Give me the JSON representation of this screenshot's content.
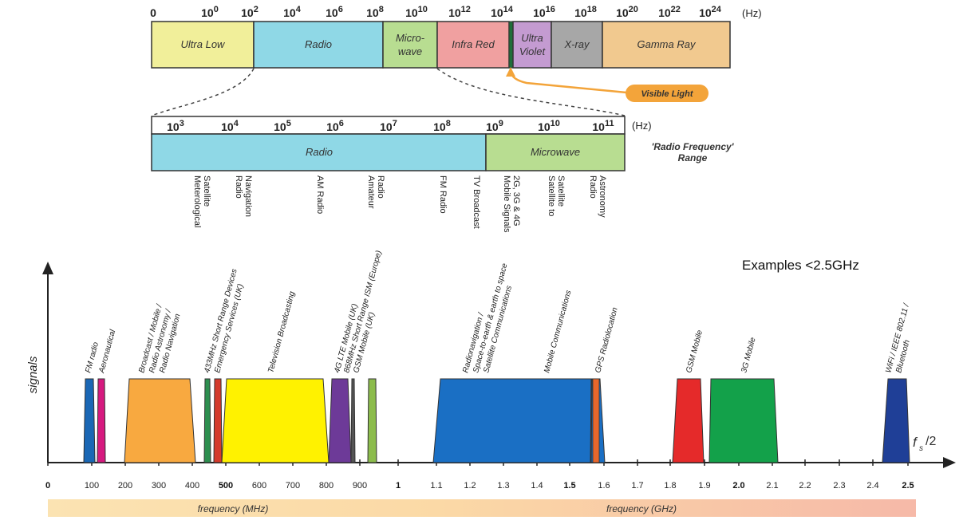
{
  "spectrum": {
    "unit": "(Hz)",
    "ticks": [
      {
        "base": "0",
        "exp": ""
      },
      {
        "base": "10",
        "exp": "0"
      },
      {
        "base": "10",
        "exp": "2"
      },
      {
        "base": "10",
        "exp": "4"
      },
      {
        "base": "10",
        "exp": "6"
      },
      {
        "base": "10",
        "exp": "8"
      },
      {
        "base": "10",
        "exp": "10"
      },
      {
        "base": "10",
        "exp": "12"
      },
      {
        "base": "10",
        "exp": "14"
      },
      {
        "base": "10",
        "exp": "16"
      },
      {
        "base": "10",
        "exp": "18"
      },
      {
        "base": "10",
        "exp": "20"
      },
      {
        "base": "10",
        "exp": "22"
      },
      {
        "base": "10",
        "exp": "24"
      }
    ],
    "bands": [
      {
        "name": "Ultra Low",
        "color": "#f1ef9a"
      },
      {
        "name": "Radio",
        "color": "#8fd8e6"
      },
      {
        "name": "Micro-",
        "name2": "wave",
        "color": "#b8dd91"
      },
      {
        "name": "Infra Red",
        "color": "#f0a0a0"
      },
      {
        "name": "Ultra",
        "name2": "Violet",
        "color": "#c49bd1"
      },
      {
        "name": "X-ray",
        "color": "#a7a7a7"
      },
      {
        "name": "Gamma Ray",
        "color": "#f1c98f"
      }
    ],
    "visible_light": "Visible Light"
  },
  "rf": {
    "unit": "(Hz)",
    "ticks": [
      {
        "base": "10",
        "exp": "3"
      },
      {
        "base": "10",
        "exp": "4"
      },
      {
        "base": "10",
        "exp": "5"
      },
      {
        "base": "10",
        "exp": "6"
      },
      {
        "base": "10",
        "exp": "7"
      },
      {
        "base": "10",
        "exp": "8"
      },
      {
        "base": "10",
        "exp": "9"
      },
      {
        "base": "10",
        "exp": "10"
      },
      {
        "base": "10",
        "exp": "11"
      }
    ],
    "bands": [
      {
        "name": "Radio",
        "color": "#8fd8e6"
      },
      {
        "name": "Microwave",
        "color": "#b8dd91"
      }
    ],
    "range_label_1": "'Radio Frequency'",
    "range_label_2": "Range",
    "applications": [
      [
        "Meterological",
        "Satellite"
      ],
      [
        "Radio",
        "Navigation"
      ],
      [
        "AM Radio"
      ],
      [
        "Amateur",
        "Radio"
      ],
      [
        "FM Radio"
      ],
      [
        "TV Broadcast"
      ],
      [
        "Mobile Signals",
        "2G, 3G & 4G"
      ],
      [
        "Satellite to",
        "Satellite"
      ],
      [
        "Radio",
        "Astronomy"
      ]
    ]
  },
  "signals_chart": {
    "title": "Examples <2.5GHz",
    "ylabel": "signals",
    "fs_label": "f",
    "fs_sub": "s",
    "fs_div": "/2",
    "xlabel_mhz": "frequency (MHz)",
    "xlabel_ghz": "frequency (GHz)",
    "mhz_ticks": [
      "0",
      "100",
      "200",
      "300",
      "400",
      "500",
      "600",
      "700",
      "800",
      "900"
    ],
    "ghz_ticks": [
      "1",
      "1.1",
      "1.2",
      "1.3",
      "1.4",
      "1.5",
      "1.6",
      "1.7",
      "1.8",
      "1.9",
      "2.0",
      "2.1",
      "2.2",
      "2.3",
      "2.4",
      "2.5"
    ],
    "signals": [
      {
        "label": "FM radio",
        "color": "#1a67b5"
      },
      {
        "label": "Aeronautical",
        "color": "#d6197f"
      },
      {
        "label": "Broadcast / Mobile /",
        "label2": "Radio Astronomy /",
        "label3": "Radio Navigation",
        "color": "#f8a940"
      },
      {
        "label": "433MHz Short Range Devices",
        "label2": "Emergency Services (UK)",
        "color": "#2d8f4f"
      },
      {
        "label": "",
        "color": "#d43a2c"
      },
      {
        "label": "Television Broadcasting",
        "color": "#fff200"
      },
      {
        "label": "4G LTE Mobile (UK)",
        "label2": "868MHz Short Range ISM (Europe)",
        "label3": "GSM Mobile (UK)",
        "color": "#6d3a98"
      },
      {
        "label": "",
        "color": "#555555"
      },
      {
        "label": "",
        "color": "#8cbc4c"
      },
      {
        "label": "Radionavigation /",
        "label2": "Space-to-earth & earth to space",
        "label3": "Satellite Communications",
        "color": "#1a6fc4"
      },
      {
        "label": "Mobile Communications",
        "color": "#1a6fc4"
      },
      {
        "label": "GPS Radiolocation",
        "color": "#e8672c"
      },
      {
        "label": "GSM Mobile",
        "color": "#e52a2a"
      },
      {
        "label": "3G Mobile",
        "color": "#13a14a"
      },
      {
        "label": "WiFi / IEEE 802.11 /",
        "label2": "Bluetooth",
        "color": "#1f3f97"
      }
    ]
  }
}
